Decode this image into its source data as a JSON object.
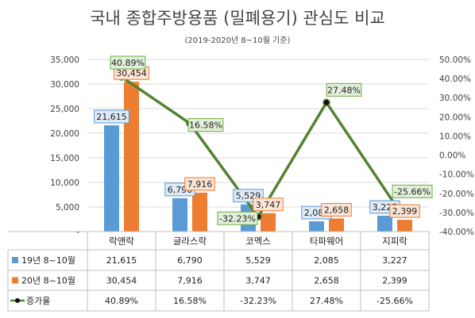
{
  "chart_data": {
    "type": "bar",
    "title": "국내 종합주방용품 (밀폐용기) 관심도 비교",
    "subtitle": "(2019-2020년 8~10월 기준)",
    "categories": [
      "락앤락",
      "글라스락",
      "코멕스",
      "타파웨어",
      "지피락"
    ],
    "series": [
      {
        "name": "19년 8~10월",
        "type": "bar",
        "axis": "left",
        "color": "#5b9bd5",
        "values": [
          21615,
          6790,
          5529,
          2085,
          3227
        ],
        "labels": [
          "21,615",
          "6,790",
          "5,529",
          "2,085",
          "3,227"
        ]
      },
      {
        "name": "20년 8~10월",
        "type": "bar",
        "axis": "left",
        "color": "#ed7d31",
        "values": [
          30454,
          7916,
          3747,
          2658,
          2399
        ],
        "labels": [
          "30,454",
          "7,916",
          "3,747",
          "2,658",
          "2,399"
        ]
      },
      {
        "name": "증가율",
        "type": "line",
        "axis": "right",
        "color": "#548235",
        "values": [
          40.89,
          16.58,
          -32.23,
          27.48,
          -25.66
        ],
        "labels": [
          "40.89%",
          "16.58%",
          "-32.23%",
          "27.48%",
          "-25.66%"
        ]
      }
    ],
    "y_left": {
      "min": 0,
      "max": 35000,
      "step": 5000,
      "tick_labels": [
        "-",
        "5,000",
        "10,000",
        "15,000",
        "20,000",
        "25,000",
        "30,000",
        "35,000"
      ]
    },
    "y_right": {
      "min": -40,
      "max": 50,
      "step": 10,
      "tick_labels": [
        "-40.00%",
        "-30.00%",
        "-20.00%",
        "-10.00%",
        "0.00%",
        "10.00%",
        "20.00%",
        "30.00%",
        "40.00%",
        "50.00%"
      ]
    },
    "grid": true,
    "legend": "data-table"
  }
}
